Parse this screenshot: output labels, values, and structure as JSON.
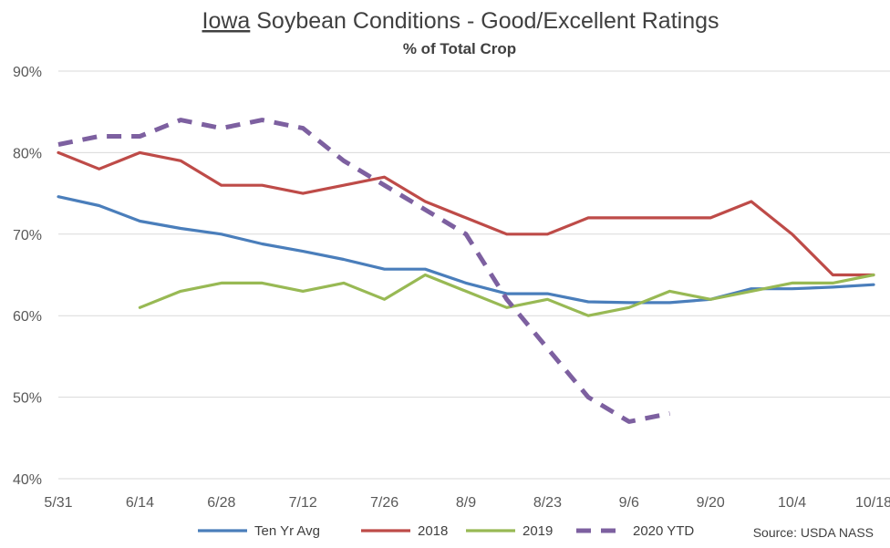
{
  "chart_data": {
    "type": "line",
    "title_underlined": "Iowa",
    "title_rest": " Soybean Conditions - Good/Excellent Ratings",
    "subtitle": "% of Total Crop",
    "x_labels": [
      "5/31",
      "6/14",
      "6/28",
      "7/12",
      "7/26",
      "8/9",
      "8/23",
      "9/6",
      "9/20",
      "10/4",
      "10/18"
    ],
    "y_ticks": [
      40,
      50,
      60,
      70,
      80,
      90
    ],
    "y_tick_labels": [
      "40%",
      "50%",
      "60%",
      "70%",
      "80%",
      "90%"
    ],
    "ylim": [
      40,
      90
    ],
    "grid": true,
    "legend_position": "bottom",
    "source": "Source: USDA NASS",
    "series": [
      {
        "name": "Ten Yr Avg",
        "color": "#4a7ebb",
        "dashed": false,
        "x": [
          "5/31",
          "6/7",
          "6/14",
          "6/21",
          "6/28",
          "7/5",
          "7/12",
          "7/19",
          "7/26",
          "8/2",
          "8/9",
          "8/16",
          "8/23",
          "8/30",
          "9/6",
          "9/13",
          "9/20",
          "9/27",
          "10/4",
          "10/11",
          "10/18"
        ],
        "values": [
          74.6,
          73.5,
          71.6,
          70.7,
          70.0,
          68.8,
          67.9,
          66.9,
          65.7,
          65.7,
          64.0,
          62.7,
          62.7,
          61.7,
          61.6,
          61.6,
          62.0,
          63.3,
          63.3,
          63.5,
          63.8
        ]
      },
      {
        "name": "2018",
        "color": "#be4b48",
        "dashed": false,
        "x": [
          "5/31",
          "6/7",
          "6/14",
          "6/21",
          "6/28",
          "7/5",
          "7/12",
          "7/19",
          "7/26",
          "8/2",
          "8/9",
          "8/16",
          "8/23",
          "8/30",
          "9/6",
          "9/13",
          "9/20",
          "9/27",
          "10/4",
          "10/11",
          "10/18"
        ],
        "values": [
          80,
          78,
          80,
          79,
          76,
          76,
          75,
          76,
          77,
          74,
          72,
          70,
          70,
          72,
          72,
          72,
          72,
          74,
          70,
          65,
          65
        ]
      },
      {
        "name": "2019",
        "color": "#98b954",
        "dashed": false,
        "x": [
          "6/14",
          "6/21",
          "6/28",
          "7/5",
          "7/12",
          "7/19",
          "7/26",
          "8/2",
          "8/9",
          "8/16",
          "8/23",
          "8/30",
          "9/6",
          "9/13",
          "9/20",
          "9/27",
          "10/4",
          "10/11",
          "10/18"
        ],
        "values": [
          61,
          63,
          64,
          64,
          63,
          64,
          62,
          65,
          63,
          61,
          62,
          60,
          61,
          63,
          62,
          63,
          64,
          64,
          65
        ]
      },
      {
        "name": "2020 YTD",
        "color": "#7d60a0",
        "dashed": true,
        "x": [
          "5/31",
          "6/7",
          "6/14",
          "6/21",
          "6/28",
          "7/5",
          "7/12",
          "7/19",
          "7/26",
          "8/2",
          "8/9",
          "8/16",
          "8/23",
          "8/30",
          "9/6",
          "9/13"
        ],
        "values": [
          81,
          82,
          82,
          84,
          83,
          84,
          83,
          79,
          76,
          73,
          70,
          62,
          56,
          50,
          47,
          48
        ]
      }
    ]
  }
}
